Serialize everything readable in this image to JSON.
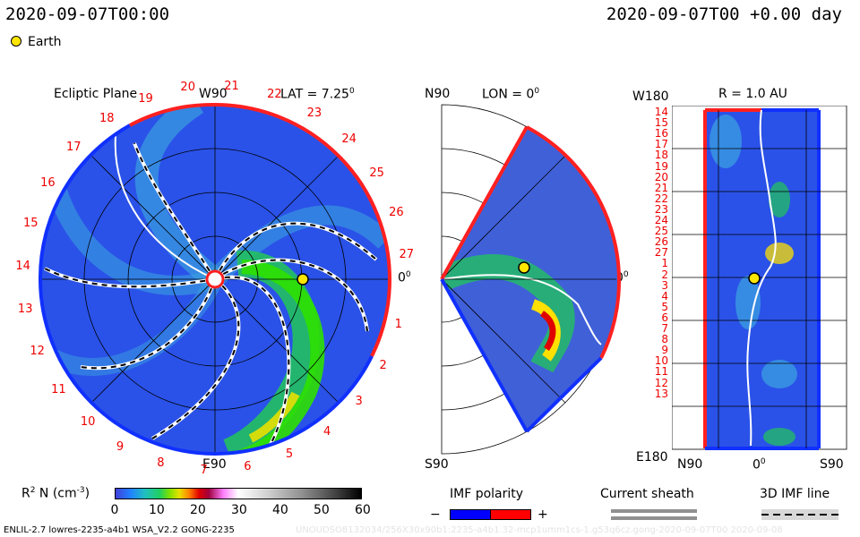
{
  "header": {
    "left_time": "2020-09-07T00:00",
    "right_time": "2020-09-07T00 +0.00 day",
    "legend_earth": "Earth",
    "earth_color": "#ffe600"
  },
  "panels": {
    "ecliptic": {
      "title": "Ecliptic Plane",
      "lat_label": "LAT = 7.25",
      "lat_sup": "0",
      "top_label": "W90",
      "bottom_label": "E90",
      "right_label": "0",
      "right_sup": "0",
      "rotations": [
        "1",
        "2",
        "3",
        "4",
        "5",
        "6",
        "7",
        "8",
        "9",
        "10",
        "11",
        "12",
        "13",
        "14",
        "15",
        "16",
        "17",
        "18",
        "19",
        "20",
        "21",
        "22",
        "23",
        "24",
        "25",
        "26",
        "27"
      ]
    },
    "meridional": {
      "top_label": "N90",
      "lon_label": "LON = 0",
      "lon_sup": "0",
      "right_label": "0",
      "right_sup": "0",
      "bottom_label": "S90"
    },
    "radial": {
      "top_left_label": "W180",
      "title": "R = 1.0 AU",
      "bottom_left_label": "E180",
      "bottom_labels": [
        "N90",
        "0",
        "S90"
      ],
      "bottom_sup": "0",
      "rows": [
        "14",
        "15",
        "16",
        "17",
        "18",
        "19",
        "20",
        "21",
        "22",
        "23",
        "24",
        "25",
        "26",
        "27",
        "1",
        "2",
        "3",
        "4",
        "5",
        "6",
        "7",
        "8",
        "9",
        "10",
        "11",
        "12",
        "13"
      ]
    }
  },
  "colorbar": {
    "label": "R",
    "label_sup": "2",
    "label_rest": " N (cm",
    "label_exp": "-3",
    "label_close": ")",
    "ticks": [
      "0",
      "10",
      "20",
      "30",
      "40",
      "50",
      "60"
    ]
  },
  "legend": {
    "imf_title": "IMF polarity",
    "imf_minus": "−",
    "imf_plus": "+",
    "imf_neg_color": "#0000ff",
    "imf_pos_color": "#ff0000",
    "sheath_title": "Current sheath",
    "imf3d_title": "3D IMF line"
  },
  "footer": {
    "model": "ENLIL-2.7 lowres-2235-a4b1 WSA_V2.2 GONG-2235",
    "watermark": "UNOUDSO8132034/256X30x90b1:2235-a4b1.32-mcp1umm1cs-1.g53q6cz.gong-2020-09-07T00 2020-09-08"
  }
}
